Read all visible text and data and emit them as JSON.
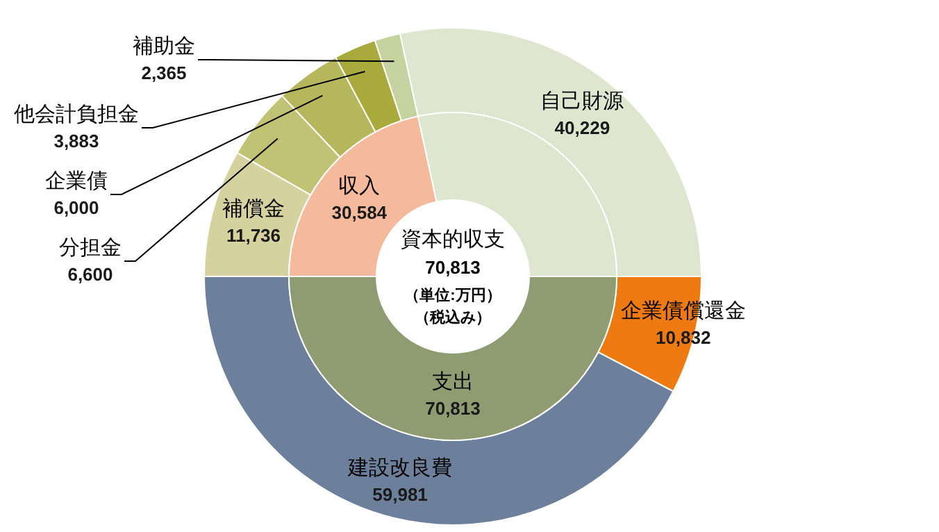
{
  "chart_data": [
    {
      "type": "donut",
      "categories": [
        "補償金",
        "分担金",
        "企業債",
        "他会計負担金",
        "補助金",
        "自己財源",
        "企業債償還金",
        "建設改良費"
      ],
      "values": [
        11736,
        6600,
        6000,
        3883,
        2365,
        40229,
        10832,
        59981
      ],
      "value_labels": [
        "11,736",
        "6,600",
        "6,000",
        "3,883",
        "2,365",
        "40,229",
        "10,832",
        "59,981"
      ],
      "colors": [
        "#d5d2a0",
        "#c2c274",
        "#b6b75c",
        "#a8aa3c",
        "#c4d3a0",
        "#dfe6cf",
        "#f07a12",
        "#6c809c"
      ]
    },
    {
      "type": "donut",
      "categories": [
        "収入",
        null,
        "支出"
      ],
      "values": [
        30584,
        40229,
        70813
      ],
      "value_labels": [
        "30,584",
        null,
        "70,813"
      ],
      "colors": [
        "#f5b99b",
        "#dfe6cf",
        "#8f9b70"
      ],
      "annotations": [
        "資本的収支",
        "70,813",
        "（単位:万円）",
        "（税込み）"
      ]
    }
  ]
}
